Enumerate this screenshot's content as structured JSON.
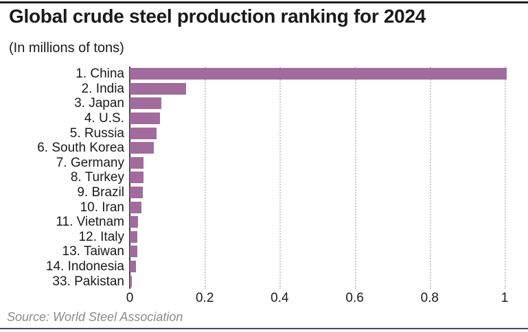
{
  "colors": {
    "bar-fill": "#a26b9d",
    "axis-line": "#3b3b3b",
    "grid-line": "#c9c9c9",
    "rule-top": "#1e1e1e",
    "rule-bottom": "#4a4a57",
    "text": "#1a1a1a",
    "source-text": "#8c8c8c"
  },
  "chart_data": {
    "type": "bar",
    "orientation": "horizontal",
    "title": "Global crude steel production ranking for 2024",
    "subtitle": "(In millions of tons)",
    "source": "Source: World Steel Association",
    "categories": [
      "1. China",
      "2. India",
      "3. Japan",
      "4. U.S.",
      "5. Russia",
      "6. South Korea",
      "7. Germany",
      "8. Turkey",
      "9. Brazil",
      "10. Iran",
      "11. Vietnam",
      "12. Italy",
      "13. Taiwan",
      "14. Indonesia",
      "33. Pakistan"
    ],
    "values": [
      1.005,
      0.15,
      0.084,
      0.08,
      0.071,
      0.064,
      0.037,
      0.037,
      0.034,
      0.031,
      0.022,
      0.02,
      0.02,
      0.017,
      0.006
    ],
    "x_ticks": [
      0,
      0.2,
      0.4,
      0.6,
      0.8,
      1
    ],
    "x_tick_labels": [
      "0",
      "0.2",
      "0.4",
      "0.6",
      "0.8",
      "1"
    ],
    "xlim": [
      0,
      1.04
    ],
    "grid": "dotted-vertical",
    "legend": "none",
    "bar_color": "#a26b9d"
  }
}
